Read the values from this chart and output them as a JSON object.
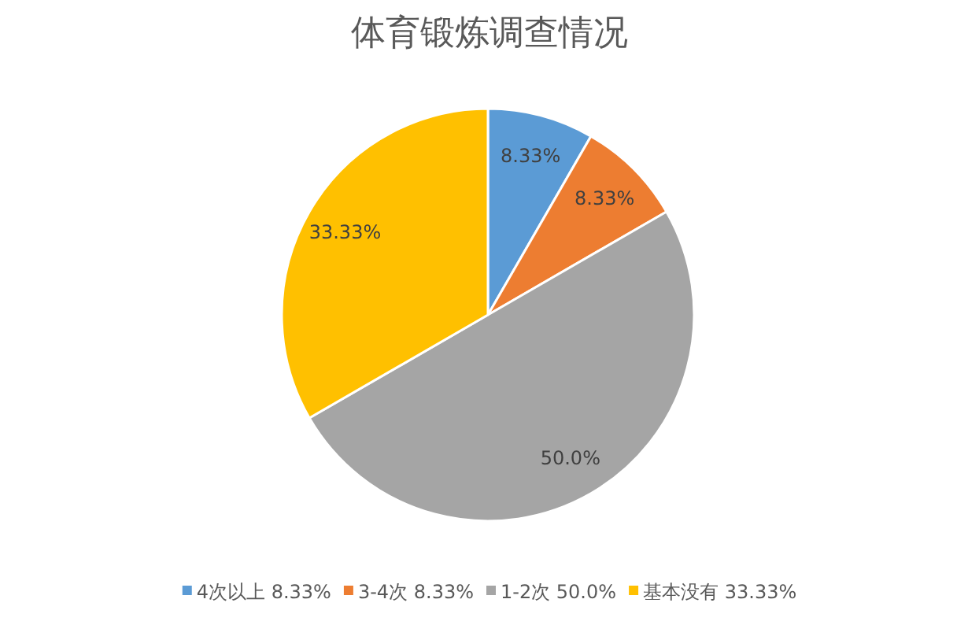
{
  "chart_data": {
    "type": "pie",
    "title": "体育锻炼调查情况",
    "categories": [
      "4次以上 8.33%",
      "3-4次 8.33%",
      "1-2次 50.0%",
      "基本没有 33.33%"
    ],
    "values": [
      8.33,
      8.33,
      50.0,
      33.33
    ],
    "value_labels": [
      "8.33%",
      "8.33%",
      "50.0%",
      "33.33%"
    ],
    "colors": [
      "#5b9bd5",
      "#ed7d31",
      "#a5a5a5",
      "#ffc000"
    ],
    "legend": "bottom"
  }
}
